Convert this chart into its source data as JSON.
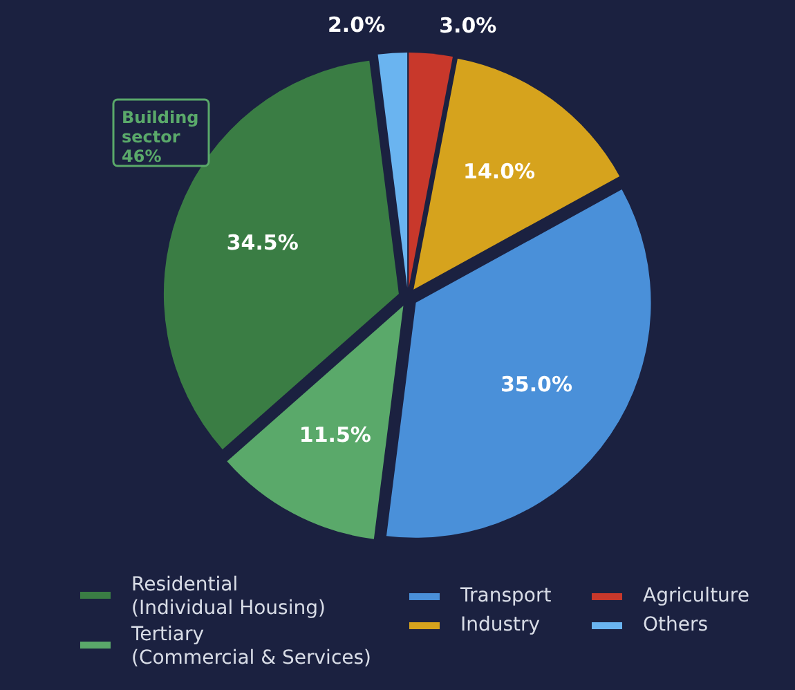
{
  "chart_data": {
    "type": "pie",
    "categories": [
      "Agriculture",
      "Industry",
      "Transport",
      "Tertiary\n(Commercial & Services)",
      "Residential\n(Individual Housing)",
      "Others"
    ],
    "values": [
      3.0,
      14.0,
      35.0,
      11.5,
      34.5,
      2.0
    ],
    "colors": [
      "#c8382b",
      "#d6a31d",
      "#4a90d9",
      "#5aa96a",
      "#3a7d44",
      "#6ab4f0"
    ],
    "value_labels": [
      "3.0%",
      "14.0%",
      "35.0%",
      "11.5%",
      "34.5%",
      "2.0%"
    ],
    "legend": "bottom",
    "annotations": [
      "Building\nsector\n46%"
    ]
  }
}
